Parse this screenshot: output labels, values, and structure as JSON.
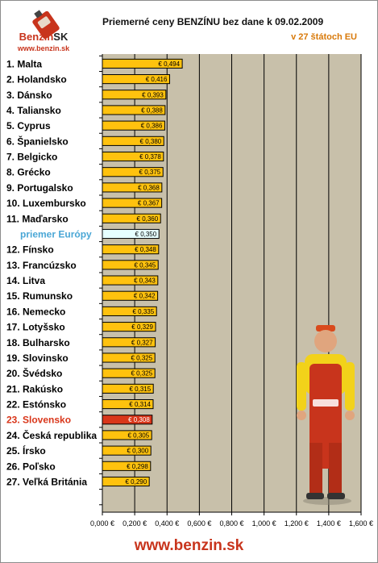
{
  "logo": {
    "brand": "Benzin",
    "brand_suffix": "SK",
    "url": "www.benzin.sk"
  },
  "footer": {
    "url": "www.benzin.sk"
  },
  "chart_data": {
    "type": "bar",
    "orientation": "horizontal",
    "title": "Priemerné ceny BENZÍNU bez dane k 09.02.2009",
    "subtitle": "v 27 štátoch EU",
    "categories": [
      "1. Malta",
      "2. Holandsko",
      "3. Dánsko",
      "4. Taliansko",
      "5. Cyprus",
      "6. Španielsko",
      "7. Belgicko",
      "8. Grécko",
      "9. Portugalsko",
      "10. Luxembursko",
      "11. Maďarsko",
      "priemer Európy",
      "12. Fínsko",
      "13. Francúzsko",
      "14. Litva",
      "15. Rumunsko",
      "16. Nemecko",
      "17. Lotyšsko",
      "18. Bulharsko",
      "19. Slovinsko",
      "20. Švédsko",
      "21. Rakúsko",
      "22. Estónsko",
      "23. Slovensko",
      "24. Česká republika",
      "25. Írsko",
      "26. Poľsko",
      "27. Veľká Británia"
    ],
    "values": [
      0.494,
      0.416,
      0.393,
      0.388,
      0.386,
      0.38,
      0.378,
      0.375,
      0.368,
      0.367,
      0.36,
      0.35,
      0.348,
      0.345,
      0.343,
      0.342,
      0.335,
      0.329,
      0.327,
      0.325,
      0.325,
      0.315,
      0.314,
      0.308,
      0.305,
      0.3,
      0.298,
      0.29
    ],
    "value_labels": [
      "€ 0,494",
      "€ 0,416",
      "€ 0,393",
      "€ 0,388",
      "€ 0,386",
      "€ 0,380",
      "€ 0,378",
      "€ 0,375",
      "€ 0,368",
      "€ 0,367",
      "€ 0,360",
      "€ 0,350",
      "€ 0,348",
      "€ 0,345",
      "€ 0,343",
      "€ 0,342",
      "€ 0,335",
      "€ 0,329",
      "€ 0,327",
      "€ 0,325",
      "€ 0,325",
      "€ 0,315",
      "€ 0,314",
      "€ 0,308",
      "€ 0,305",
      "€ 0,300",
      "€ 0,298",
      "€ 0,290"
    ],
    "highlight": {
      "priemer Európy": "average",
      "23. Slovensko": "slovakia"
    },
    "xlim": [
      0,
      1.6
    ],
    "x_ticks": [
      0,
      0.2,
      0.4,
      0.6,
      0.8,
      1.0,
      1.2,
      1.4,
      1.6
    ],
    "x_tick_labels": [
      "0,000 €",
      "0,200 €",
      "0,400 €",
      "0,600 €",
      "0,800 €",
      "1,000 €",
      "1,200 €",
      "1,400 €",
      "1,600 €"
    ],
    "grid": true,
    "colors": {
      "bar": "#ffc20e",
      "average_bar": "#e6ffff",
      "slovakia_bar": "#d9361a",
      "plot_background": "#c8c0aa",
      "average_label": "#4aa7d6",
      "slovakia_label": "#d9361a",
      "title": "#111111",
      "subtitle": "#d8790a",
      "footer": "#c8341c"
    }
  }
}
